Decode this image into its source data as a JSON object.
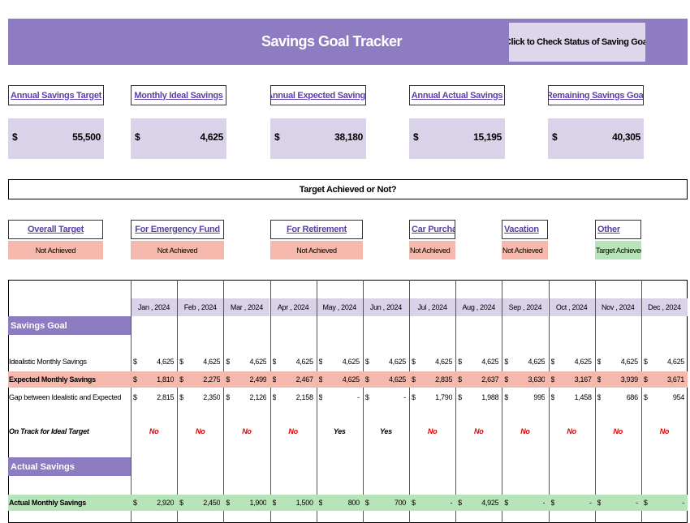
{
  "header": {
    "title": "Savings Goal Tracker",
    "button": "Click to Check Status of Saving Goal"
  },
  "currency": "$",
  "kpis": [
    {
      "label": "Annual Savings Target",
      "value": "55,500"
    },
    {
      "label": "Monthly Ideal Savings",
      "value": "4,625"
    },
    {
      "label": "Annual Expected Savings",
      "value": "38,180"
    },
    {
      "label": "Annual Actual Savings",
      "value": "15,195"
    },
    {
      "label": "Remaining Savings Goal",
      "value": "40,305"
    }
  ],
  "status_title": "Target Achieved or Not?",
  "statuses": [
    {
      "label": "Overall Target",
      "status": "Not Achieved",
      "color": "#f4b8ac"
    },
    {
      "label": "For Emergency Fund",
      "status": "Not Achieved",
      "color": "#f4b8ac"
    },
    {
      "label": "For Retirement",
      "status": "Not Achieved",
      "color": "#f4b8ac"
    },
    {
      "label": "Car Purchase",
      "status": "Not Achieved",
      "color": "#f4b8ac"
    },
    {
      "label": "Vacation",
      "status": "Not Achieved",
      "color": "#f4b8ac"
    },
    {
      "label": "Other",
      "status": "Target Achieved",
      "color": "#b7e4b9"
    }
  ],
  "table": {
    "months": [
      "Jan , 2024",
      "Feb , 2024",
      "Mar , 2024",
      "Apr , 2024",
      "May , 2024",
      "Jun , 2024",
      "Jul , 2024",
      "Aug , 2024",
      "Sep , 2024",
      "Oct , 2024",
      "Nov , 2024",
      "Dec , 2024"
    ],
    "sections": [
      {
        "title": "Savings Goal",
        "rows": [
          {
            "label": "Idealistic Monthly Savings",
            "values": [
              "4,625",
              "4,625",
              "4,625",
              "4,625",
              "4,625",
              "4,625",
              "4,625",
              "4,625",
              "4,625",
              "4,625",
              "4,625",
              "4,625"
            ]
          },
          {
            "label": "Expected Monthly Savings",
            "color": "#f4b8ac",
            "values": [
              "1,810",
              "2,275",
              "2,499",
              "2,467",
              "4,625",
              "4,625",
              "2,835",
              "2,637",
              "3,630",
              "3,167",
              "3,939",
              "3,671"
            ]
          },
          {
            "label": "Gap between Idealistic and Expected",
            "values": [
              "2,815",
              "2,350",
              "2,126",
              "2,158",
              "-",
              "-",
              "1,790",
              "1,988",
              "995",
              "1,458",
              "686",
              "954"
            ]
          }
        ],
        "indicator": {
          "label": "On Track for Ideal Target",
          "values": [
            "No",
            "No",
            "No",
            "No",
            "Yes",
            "Yes",
            "No",
            "No",
            "No",
            "No",
            "No",
            "No"
          ],
          "colors": [
            "#e00000",
            "#e00000",
            "#e00000",
            "#e00000",
            "#000000",
            "#000000",
            "#e00000",
            "#e00000",
            "#e00000",
            "#e00000",
            "#e00000",
            "#e00000"
          ]
        }
      },
      {
        "title": "Actual Savings",
        "rows": [
          {
            "label": "Actual Monthly Savings",
            "color": "#b7e4b9",
            "values": [
              "2,920",
              "2,450",
              "1,900",
              "1,500",
              "800",
              "700",
              "-",
              "4,925",
              "-",
              "-",
              "-",
              "-"
            ]
          }
        ]
      }
    ]
  }
}
